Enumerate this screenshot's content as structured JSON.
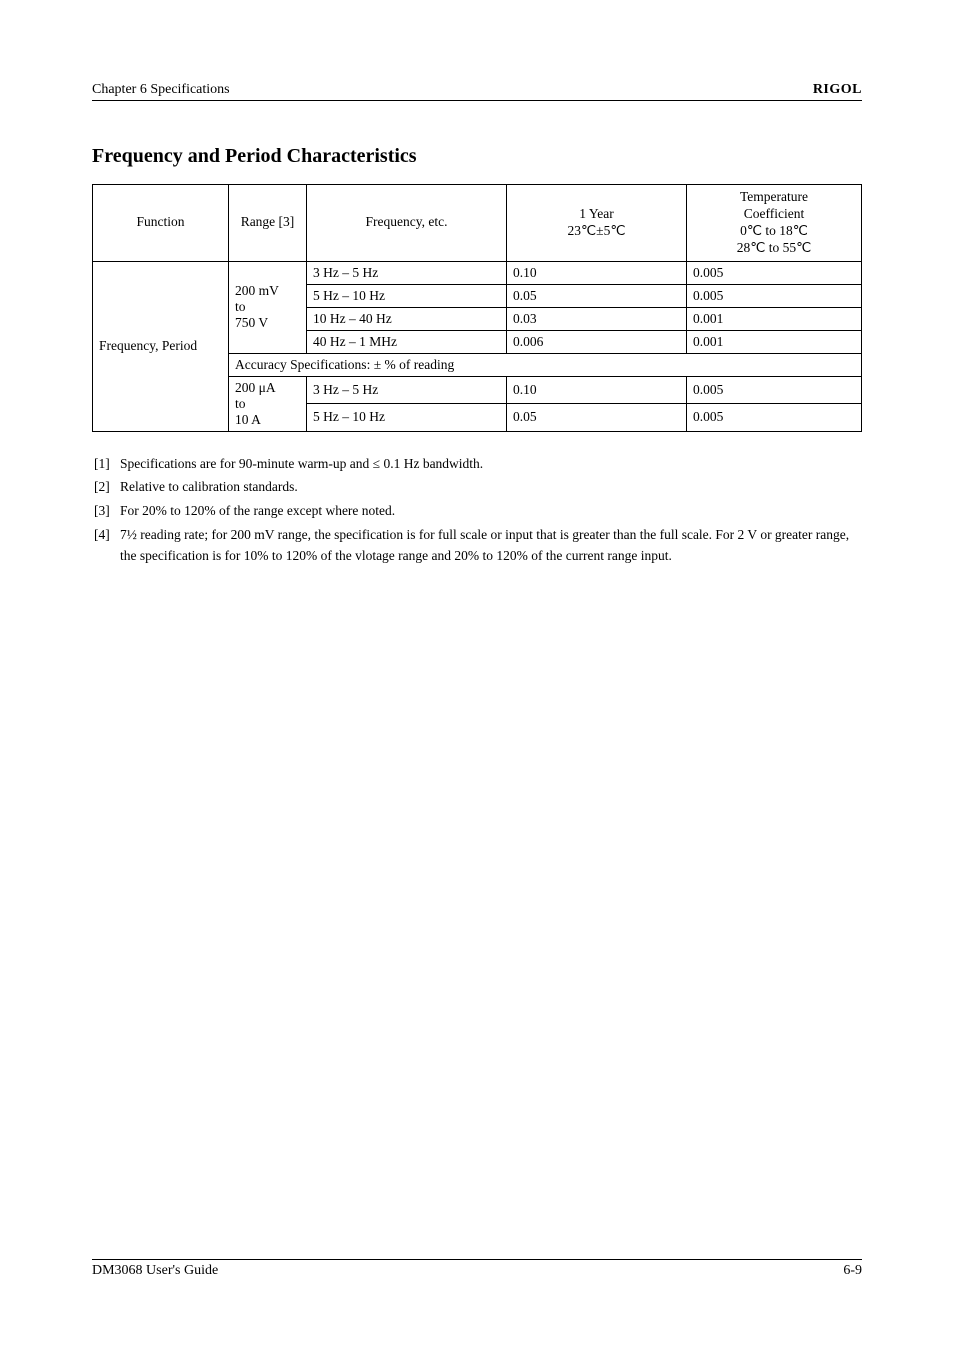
{
  "page": {
    "chapter_label": "Chapter 6 Specifications",
    "brand": "RIGOL",
    "footer_left": "DM3068 User's Guide",
    "footer_right": "6-9"
  },
  "section": {
    "title": "Frequency and Period Characteristics"
  },
  "table": {
    "headers": {
      "function": "Function",
      "range_note": "Range [3]",
      "freq_etc": "Frequency, etc.",
      "acc1": "1 Year\n23℃±5℃",
      "acc2": "Temperature\nCoefficient\n0℃ to 18℃\n28℃ to 55℃"
    },
    "rows": [
      {
        "label": "Frequency, Period",
        "rowspan_label": 6,
        "range": "200 mV\nto\n750 V",
        "rowspan_range": 4,
        "freq": "3 Hz – 5 Hz",
        "acc1": "0.10",
        "acc2": "0.005"
      },
      {
        "freq": "5 Hz – 10 Hz",
        "acc1": "0.05",
        "acc2": "0.005"
      },
      {
        "freq": "10 Hz – 40 Hz",
        "acc1": "0.03",
        "acc2": "0.001"
      },
      {
        "freq": "40 Hz – 1 MHz",
        "acc1": "0.006",
        "acc2": "0.001"
      },
      {
        "colspan": 4,
        "text": "Accuracy Specifications: ± % of reading"
      },
      {
        "range": "200 μA\nto\n10 A",
        "rowspan_range": 2,
        "freq": "3 Hz – 5 Hz",
        "acc1": "0.10",
        "acc2": "0.005"
      },
      {
        "freq": "5 Hz – 10 Hz",
        "acc1": "0.05",
        "acc2": "0.005"
      }
    ]
  },
  "footnotes": [
    {
      "marker": "[1]",
      "text": "Specifications are for 90-minute warm-up and ≤ 0.1 Hz bandwidth."
    },
    {
      "marker": "[2]",
      "text": "Relative to calibration standards."
    },
    {
      "marker": "[3]",
      "text": "For 20% to 120% of the range except where noted."
    },
    {
      "marker": "[4]",
      "text": "7½ reading rate; for 200 mV range, the specification is for full scale or input that is greater than the full scale. For 2 V or greater range, the specification is for 10% to 120% of the vlotage range and 20% to 120% of the current range input."
    }
  ],
  "colors": {
    "text": "#000000",
    "background": "#ffffff",
    "rule": "#000000"
  }
}
